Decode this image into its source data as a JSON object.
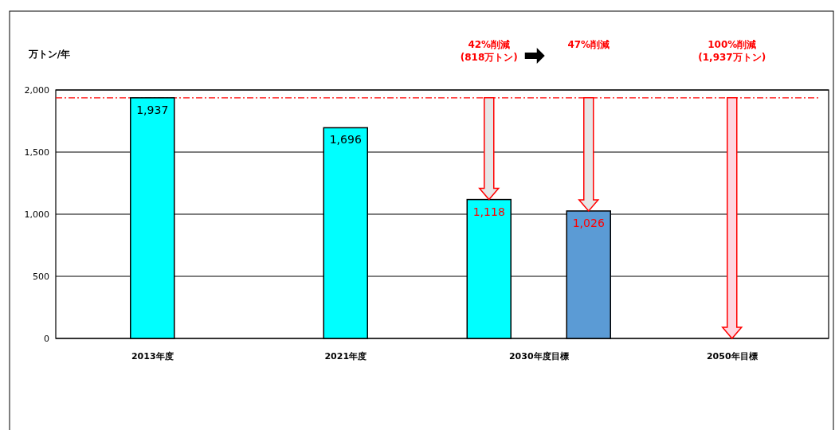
{
  "chart_data": {
    "type": "bar",
    "ylabel": "万トン/年",
    "categories": [
      "2013年度",
      "2021年度",
      "2030年度目標",
      "2050年目標"
    ],
    "series": [
      {
        "color": "#00ffff",
        "values": [
          1937,
          1696,
          1118,
          null
        ],
        "value_labels": [
          "1,937",
          "1,696",
          "1,118",
          null
        ]
      },
      {
        "color": "#5b9bd5",
        "values": [
          null,
          null,
          1026,
          null
        ],
        "value_labels": [
          null,
          null,
          "1,026",
          null
        ]
      }
    ],
    "ylim": [
      0,
      2000
    ],
    "yticks": [
      0,
      500,
      {
        "value": 1000,
        "label": "1,000"
      },
      {
        "value": 1500,
        "label": "1,500"
      },
      {
        "value": 2000,
        "label": "2,000"
      }
    ],
    "grid": "y",
    "ref_lines": [
      {
        "axis": "y",
        "value": 1937,
        "color": "#ff0000",
        "line_style": "dashed"
      }
    ],
    "annotations": [
      "42%削減\n(818万トン)",
      "47%削減",
      "100%削減\n(1,937万トン)"
    ]
  }
}
